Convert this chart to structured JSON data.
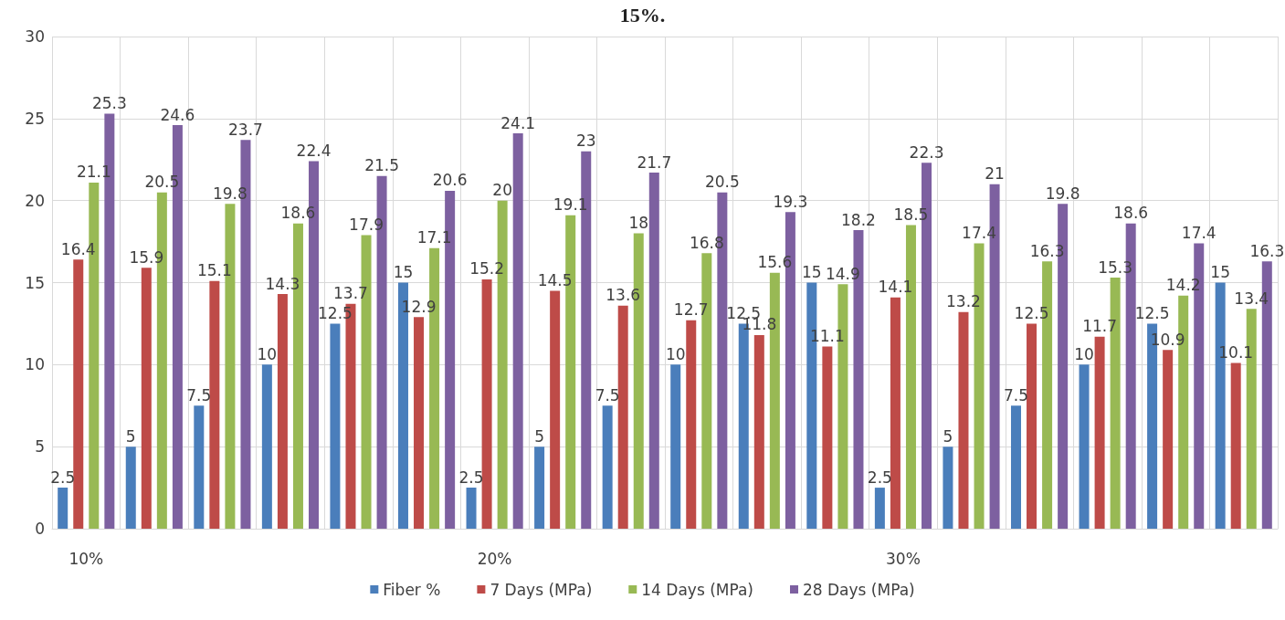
{
  "chart_data": {
    "type": "bar",
    "title": "15%.",
    "categories": [
      "10%",
      null,
      null,
      null,
      null,
      null,
      "20%",
      null,
      null,
      null,
      null,
      null,
      "30%",
      null,
      null,
      null,
      null,
      null
    ],
    "series": [
      {
        "name": "Fiber %",
        "color": "#4a7ebb",
        "values": [
          2.5,
          5,
          7.5,
          10,
          12.5,
          15,
          2.5,
          5,
          7.5,
          10,
          12.5,
          15,
          2.5,
          5,
          7.5,
          10,
          12.5,
          15
        ]
      },
      {
        "name": "7 Days (MPa)",
        "color": "#be4b48",
        "values": [
          16.4,
          15.9,
          15.1,
          14.3,
          13.7,
          12.9,
          15.2,
          14.5,
          13.6,
          12.7,
          11.8,
          11.1,
          14.1,
          13.2,
          12.5,
          11.7,
          10.9,
          10.1
        ]
      },
      {
        "name": "14 Days (MPa)",
        "color": "#98b954",
        "values": [
          21.1,
          20.5,
          19.8,
          18.6,
          17.9,
          17.1,
          20,
          19.1,
          18,
          16.8,
          15.6,
          14.9,
          18.5,
          17.4,
          16.3,
          15.3,
          14.2,
          13.4
        ]
      },
      {
        "name": "28 Days (MPa)",
        "color": "#7d60a0",
        "values": [
          25.3,
          24.6,
          23.7,
          22.4,
          21.5,
          20.6,
          24.1,
          23,
          21.7,
          20.5,
          19.3,
          18.2,
          22.3,
          21,
          19.8,
          18.6,
          17.4,
          16.3
        ]
      }
    ],
    "ylim": [
      0,
      30
    ],
    "yticks": [
      0,
      5,
      10,
      15,
      20,
      25,
      30
    ],
    "grid": true,
    "legend": "bottom",
    "data_labels": true
  }
}
